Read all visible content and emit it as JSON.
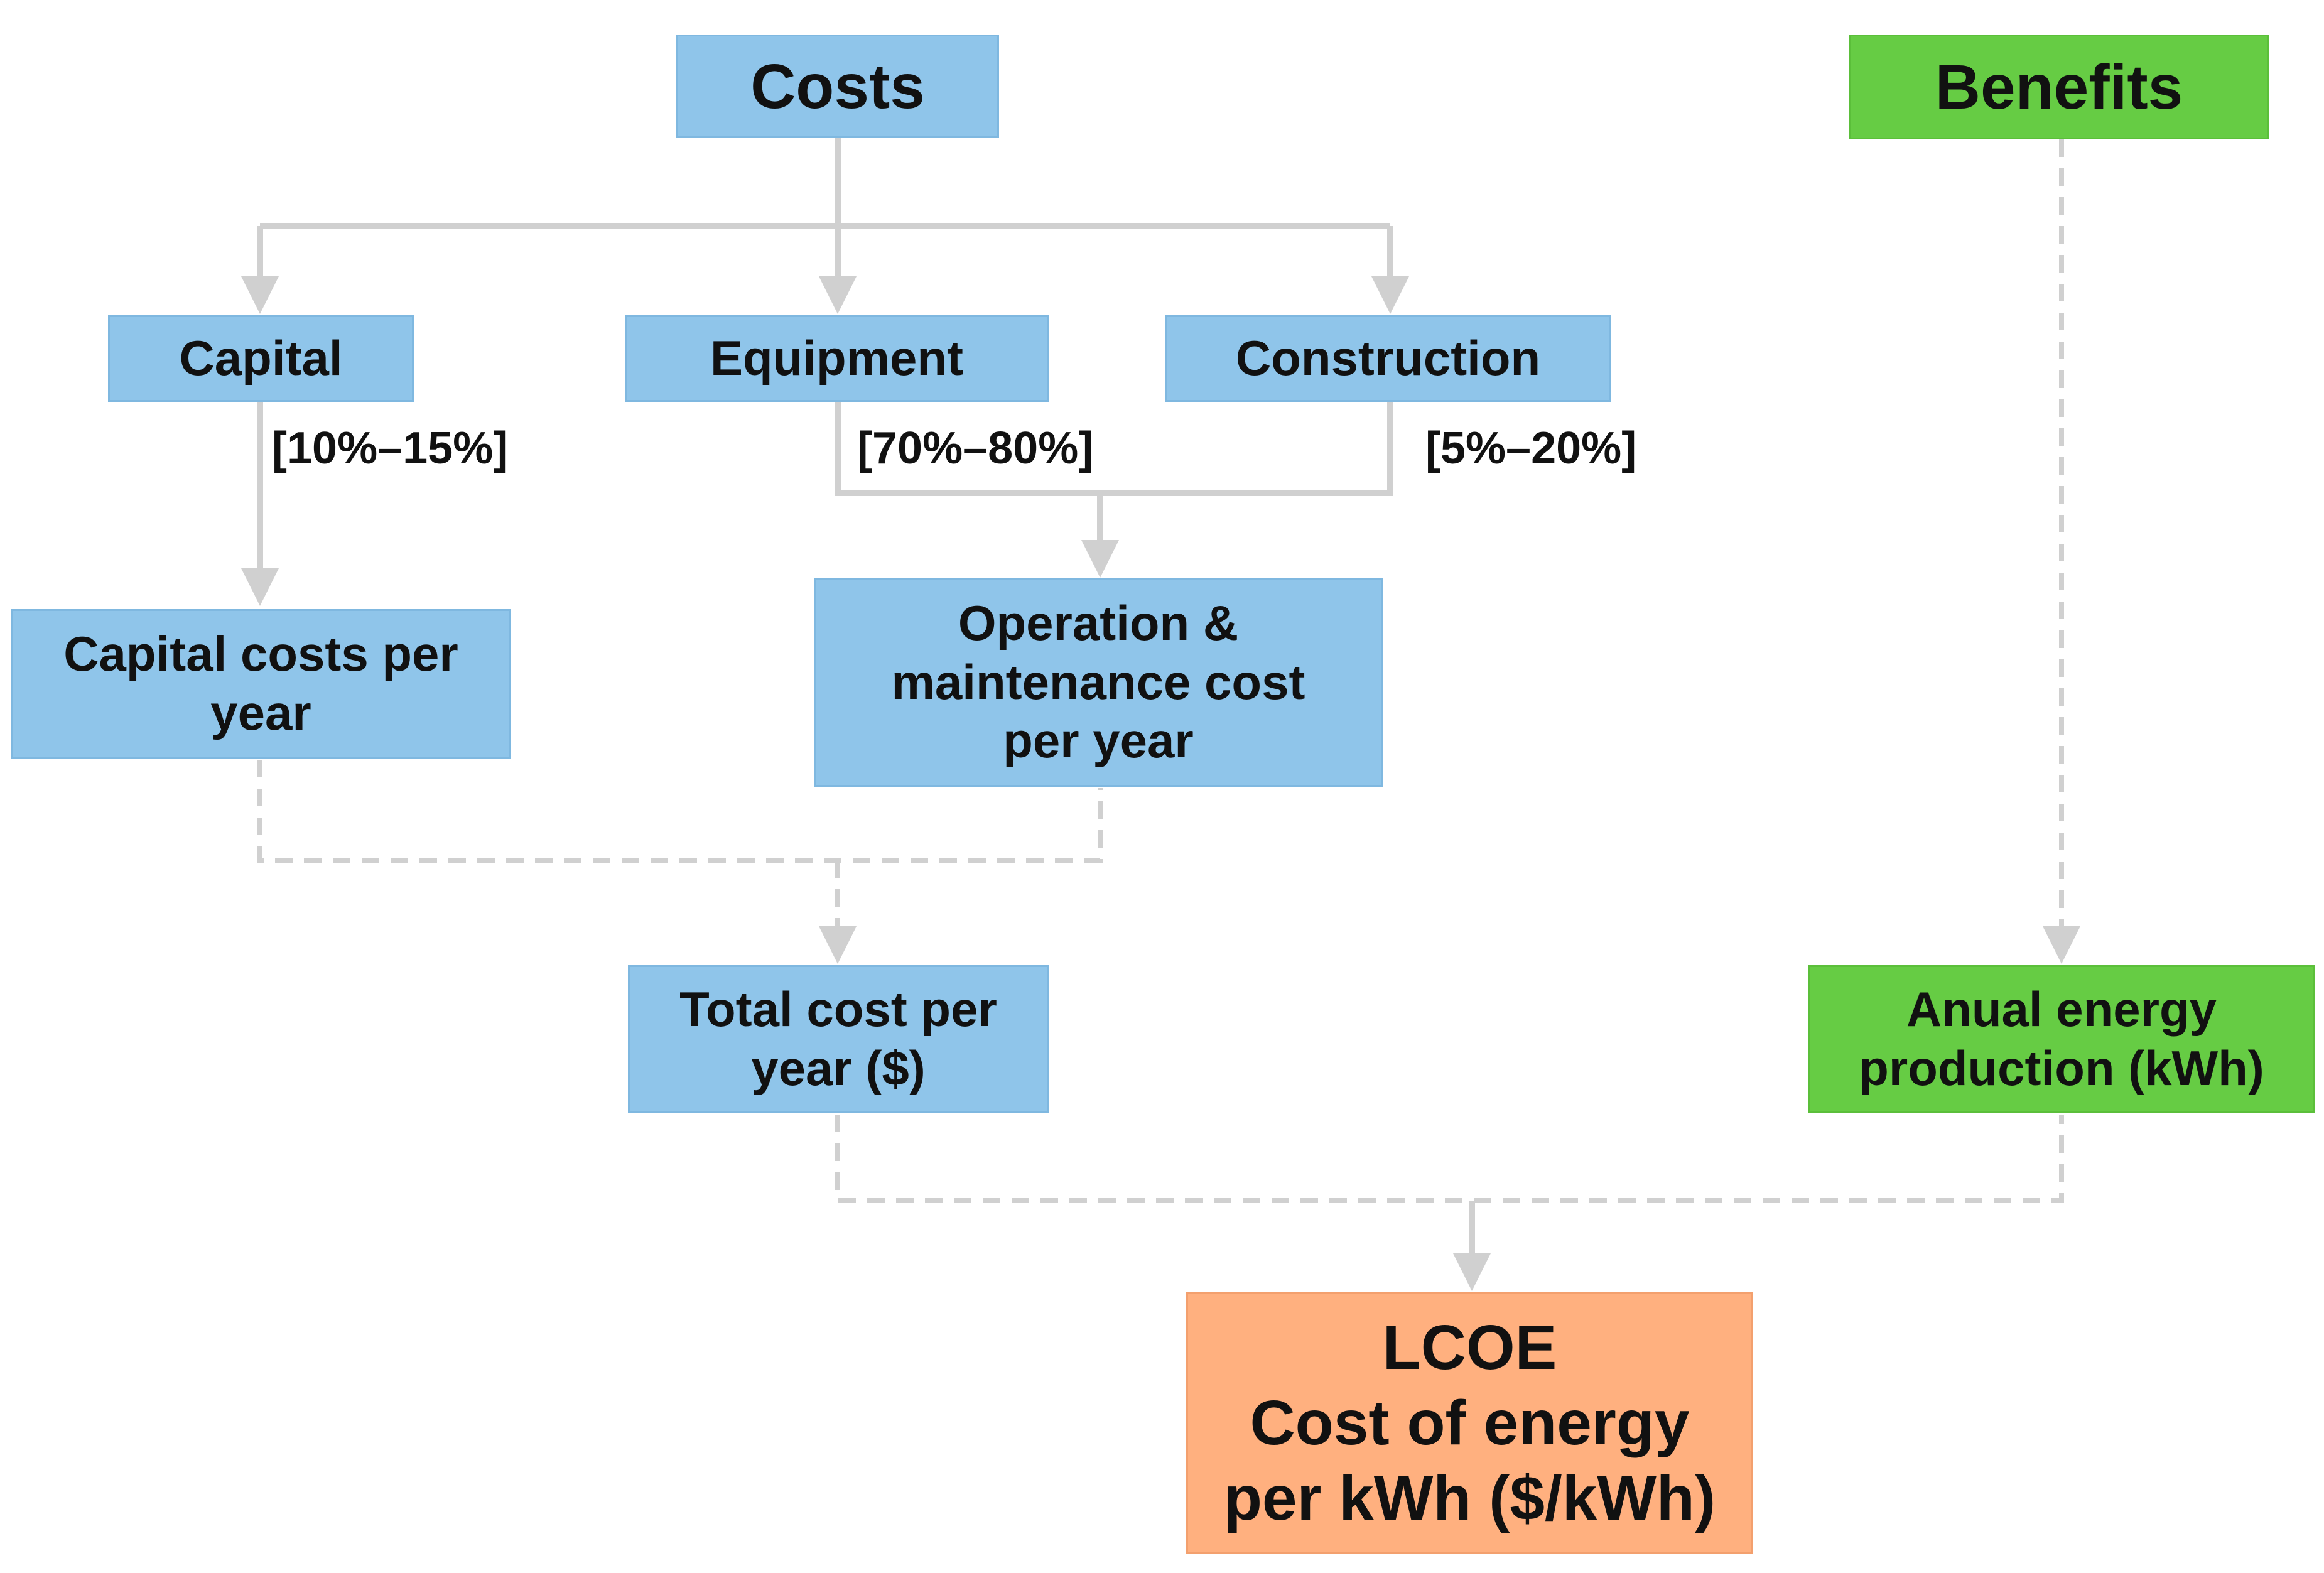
{
  "nodes": {
    "costs": "Costs",
    "benefits": "Benefits",
    "capital": "Capital",
    "equipment": "Equipment",
    "construction": "Construction",
    "capital_costs_per_year": "Capital costs per year",
    "operation_maintenance": "Operation & maintenance cost per year",
    "total_cost": "Total cost per year ($)",
    "annual_energy": "Anual energy production (kWh)",
    "lcoe_title": "LCOE",
    "lcoe_desc": "Cost of energy per kWh ($/kWh)"
  },
  "shares": {
    "capital": "[10%–15%]",
    "equipment": "[70%–80%]",
    "construction": "[5%–20%]"
  },
  "colors": {
    "cost_box": "#8fc5ea",
    "benefit_box": "#66cc44",
    "result_box": "#ffb07f",
    "connector": "#d0d0d0"
  }
}
